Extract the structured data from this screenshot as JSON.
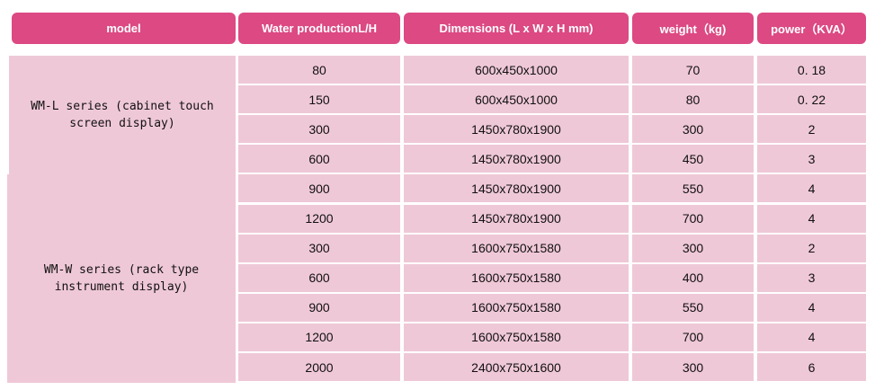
{
  "colors": {
    "header": "#dc4983",
    "cell": "#efc8d7"
  },
  "headers": [
    "model",
    "Water productionL/H",
    "Dimensions (L x W x H mm)",
    "weight（kg)",
    "power（KVA）"
  ],
  "groups": [
    {
      "model": "WM-L series (cabinet touch screen display)",
      "rows": 4
    },
    {
      "model": "WM-W series (rack type instrument display)",
      "rows": 7
    }
  ],
  "rows": [
    [
      "80",
      "600x450x1000",
      "70",
      "0. 18"
    ],
    [
      "150",
      "600x450x1000",
      "80",
      "0. 22"
    ],
    [
      "300",
      "1450x780x1900",
      "300",
      "2"
    ],
    [
      "600",
      "1450x780x1900",
      "450",
      "3"
    ],
    [
      "900",
      "1450x780x1900",
      "550",
      "4"
    ],
    [
      "1200",
      "1450x780x1900",
      "700",
      "4"
    ],
    [
      "300",
      "1600x750x1580",
      "300",
      "2"
    ],
    [
      "600",
      "1600x750x1580",
      "400",
      "3"
    ],
    [
      "900",
      "1600x750x1580",
      "550",
      "4"
    ],
    [
      "1200",
      "1600x750x1580",
      "700",
      "4"
    ],
    [
      "2000",
      "2400x750x1600",
      "300",
      "6"
    ]
  ]
}
